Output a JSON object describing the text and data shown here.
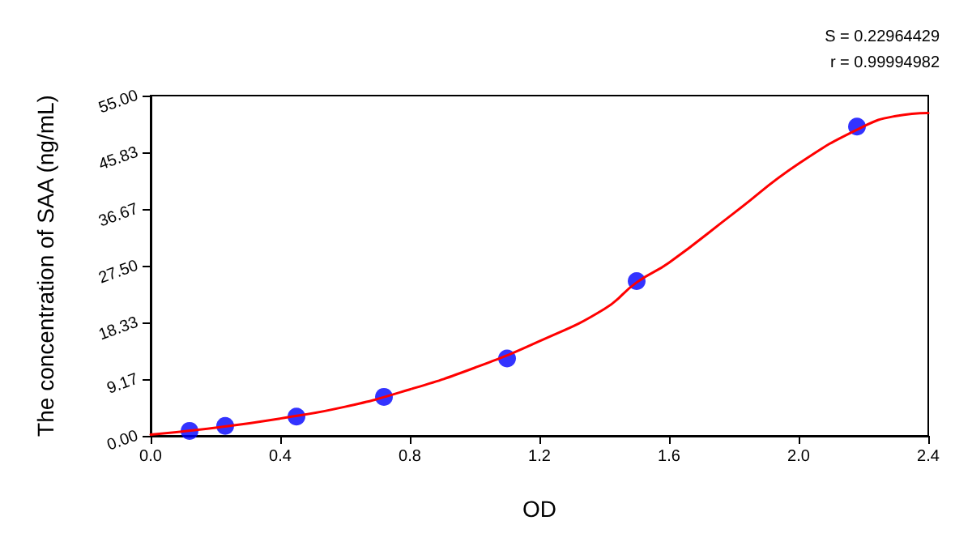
{
  "chart_data": {
    "type": "scatter",
    "xlabel": "OD",
    "ylabel": "The concentration of SAA (ng/mL)",
    "annotations": [
      "S = 0.22964429",
      "r = 0.99994982"
    ],
    "xlim": [
      0,
      2.4
    ],
    "xticks": [
      {
        "value": 0,
        "label": "0.0"
      },
      0.4,
      0.8,
      1.2,
      1.6,
      {
        "value": 2,
        "label": "2.0"
      },
      2.4
    ],
    "ylim": [
      0,
      55
    ],
    "yticks": [
      {
        "value": 0,
        "label": "0.00"
      },
      9.17,
      18.33,
      {
        "value": 27.5,
        "label": "27.50"
      },
      36.67,
      45.83,
      {
        "value": 55,
        "label": "55.00"
      }
    ],
    "grid": false,
    "series": [
      {
        "color": "#0000ff",
        "marker": "circle",
        "x": [
          0.12,
          0.23,
          0.45,
          0.72,
          1.1,
          1.5,
          2.18
        ],
        "values": [
          0.8,
          1.6,
          3.1,
          6.3,
          12.5,
          25,
          50
        ]
      },
      {
        "type": "line",
        "color": "#ff0000",
        "marker": "none",
        "line_style": "solid",
        "x": [
          0,
          0.2,
          0.4,
          0.6,
          0.8,
          1.0,
          1.2,
          1.4,
          1.5,
          1.6,
          1.8,
          2.0,
          2.2,
          2.3,
          2.4
        ],
        "values": [
          0.2,
          1.3,
          2.8,
          4.7,
          7.5,
          11,
          15.3,
          20.5,
          24.8,
          28,
          36,
          44,
          50,
          51.7,
          52.2
        ]
      }
    ]
  }
}
